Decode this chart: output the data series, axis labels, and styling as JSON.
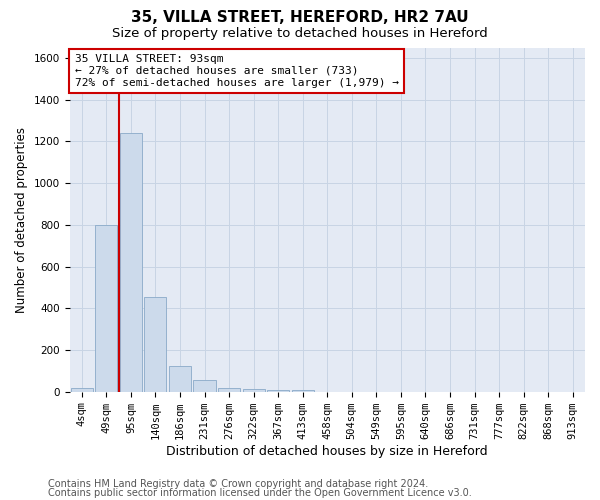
{
  "title1": "35, VILLA STREET, HEREFORD, HR2 7AU",
  "title2": "Size of property relative to detached houses in Hereford",
  "xlabel": "Distribution of detached houses by size in Hereford",
  "ylabel": "Number of detached properties",
  "footer1": "Contains HM Land Registry data © Crown copyright and database right 2024.",
  "footer2": "Contains public sector information licensed under the Open Government Licence v3.0.",
  "bin_labels": [
    "4sqm",
    "49sqm",
    "95sqm",
    "140sqm",
    "186sqm",
    "231sqm",
    "276sqm",
    "322sqm",
    "367sqm",
    "413sqm",
    "458sqm",
    "504sqm",
    "549sqm",
    "595sqm",
    "640sqm",
    "686sqm",
    "731sqm",
    "777sqm",
    "822sqm",
    "868sqm",
    "913sqm"
  ],
  "bar_values": [
    20,
    800,
    1240,
    455,
    125,
    55,
    20,
    15,
    10,
    10,
    0,
    0,
    0,
    0,
    0,
    0,
    0,
    0,
    0,
    0,
    0
  ],
  "bar_color": "#ccdaeb",
  "bar_edge_color": "#8aaac8",
  "grid_color": "#c8d4e4",
  "bg_color": "#e4eaf4",
  "ylim": [
    0,
    1650
  ],
  "yticks": [
    0,
    200,
    400,
    600,
    800,
    1000,
    1200,
    1400,
    1600
  ],
  "vline_x": 1.5,
  "vline_color": "#cc0000",
  "annotation_text": "35 VILLA STREET: 93sqm\n← 27% of detached houses are smaller (733)\n72% of semi-detached houses are larger (1,979) →",
  "annotation_box_color": "#cc0000",
  "title1_fontsize": 11,
  "title2_fontsize": 9.5,
  "xlabel_fontsize": 9,
  "ylabel_fontsize": 8.5,
  "tick_fontsize": 7.5,
  "annotation_fontsize": 8,
  "footer_fontsize": 7
}
